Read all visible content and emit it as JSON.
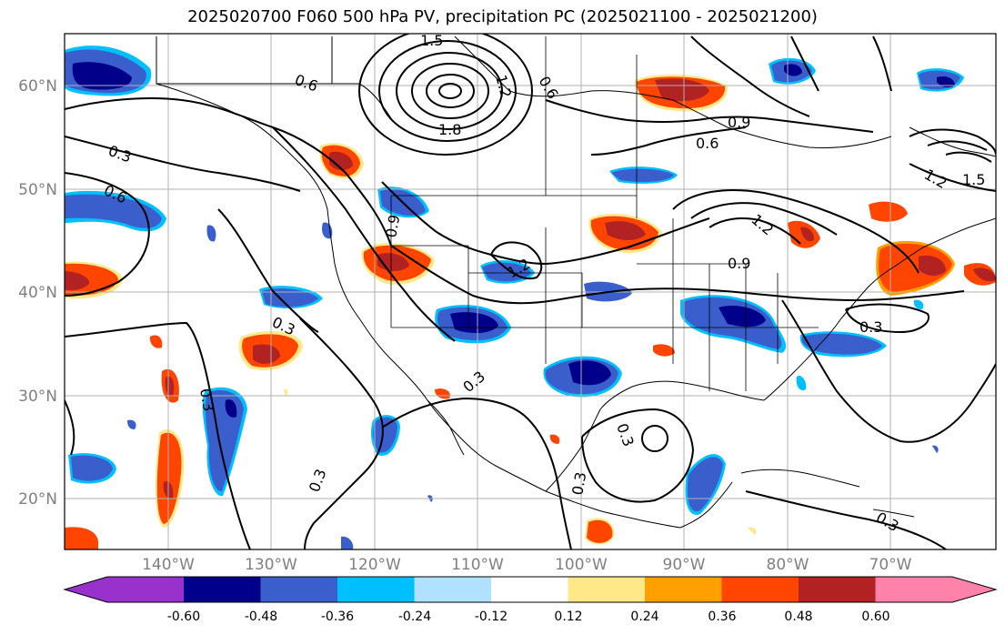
{
  "title": "2025020700 F060 500 hPa PV, precipitation PC (2025021100 - 2025021200)",
  "lat_ticks": [
    "60°N",
    "50°N",
    "40°N",
    "30°N",
    "20°N"
  ],
  "lon_ticks": [
    "140°W",
    "130°W",
    "120°W",
    "110°W",
    "100°W",
    "90°W",
    "80°W",
    "70°W"
  ],
  "colorbar": {
    "labels": [
      "-0.60",
      "-0.48",
      "-0.36",
      "-0.24",
      "-0.12",
      "0.12",
      "0.24",
      "0.36",
      "0.48",
      "0.60"
    ],
    "colors": [
      "#9932cc",
      "#00008b",
      "#3a5fcd",
      "#00bfff",
      "#b0e2ff",
      "#ffffff",
      "#ffe888",
      "#ff9f00",
      "#ff4500",
      "#b22222",
      "#ff82ab"
    ]
  },
  "contour_labels": [
    "1.5",
    "0.6",
    "1.2",
    "0.6",
    "1.8",
    "0.9",
    "0.6",
    "0.3",
    "0.6",
    "0.9",
    "1.2",
    "0.9",
    "1.2",
    "1.5",
    "0.3",
    "1.2",
    "0.3",
    "0.3",
    "0.3",
    "0.3",
    "0.3",
    "0.3",
    "0.3"
  ]
}
